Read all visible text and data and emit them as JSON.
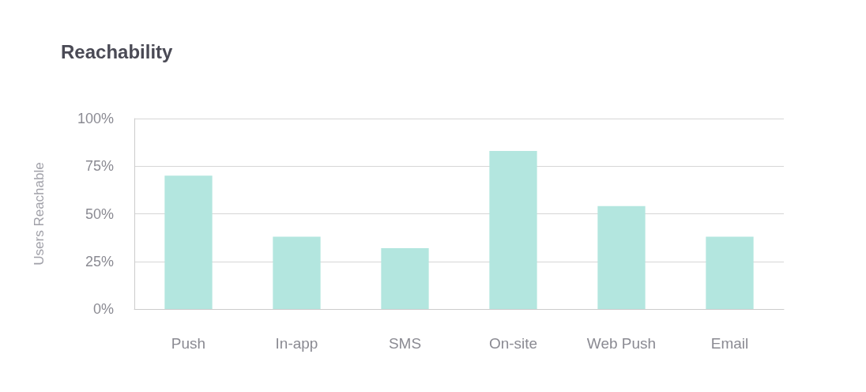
{
  "chart_data": {
    "type": "bar",
    "title": "Reachability",
    "ylabel": "Users Reachable",
    "categories": [
      "Push",
      "In-app",
      "SMS",
      "On-site",
      "Web Push",
      "Email"
    ],
    "values": [
      70,
      38,
      32,
      83,
      54,
      38
    ],
    "color": "#b3e6df",
    "ylim": [
      0,
      100
    ],
    "yticks": [
      {
        "value": 0,
        "label": "0%"
      },
      {
        "value": 25,
        "label": "25%"
      },
      {
        "value": 50,
        "label": "50%"
      },
      {
        "value": 75,
        "label": "75%"
      },
      {
        "value": 100,
        "label": "100%"
      }
    ],
    "grid": "y"
  }
}
